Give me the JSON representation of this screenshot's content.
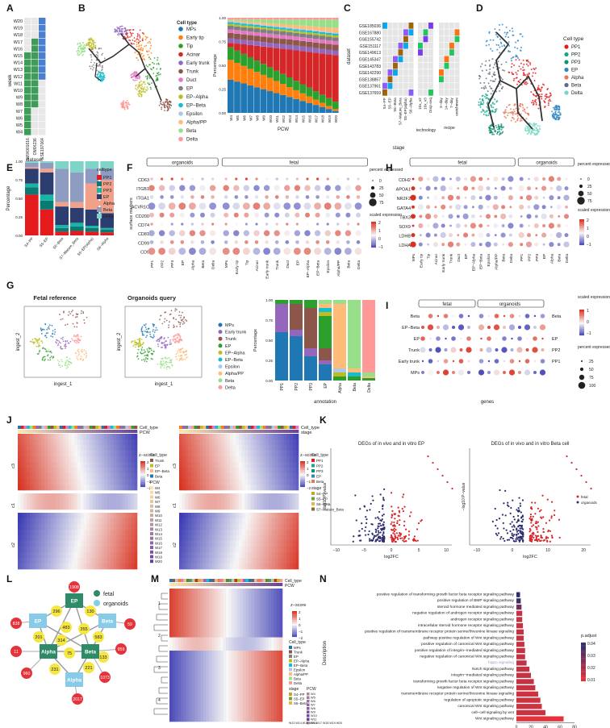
{
  "panels": {
    "a": "A",
    "b": "B",
    "c": "C",
    "d": "D",
    "e": "E",
    "f": "F",
    "g": "G",
    "h": "H",
    "i": "I",
    "j": "J",
    "k": "K",
    "l": "L",
    "m": "M",
    "n": "N"
  },
  "panel_a": {
    "ylabel": "week",
    "xlabel": "dataset",
    "weeks": [
      "W20",
      "W19",
      "W18",
      "W17",
      "W16",
      "W15",
      "W14",
      "W13",
      "W12",
      "W11",
      "W10",
      "W9",
      "W8",
      "W7",
      "W6",
      "W5",
      "W4"
    ],
    "datasets": [
      "OMIX001616",
      "OMIX236",
      "GSE197064"
    ]
  },
  "cell_types": {
    "legend_title": "Cell type",
    "items": [
      {
        "name": "MPs",
        "color": "#1f77b4"
      },
      {
        "name": "Early tip",
        "color": "#ff7f0e"
      },
      {
        "name": "Tip",
        "color": "#2ca02c"
      },
      {
        "name": "Acinar",
        "color": "#d62728"
      },
      {
        "name": "Early trunk",
        "color": "#9467bd"
      },
      {
        "name": "Trunk",
        "color": "#8c564b"
      },
      {
        "name": "Duct",
        "color": "#e377c2"
      },
      {
        "name": "EP",
        "color": "#7f7f7f"
      },
      {
        "name": "EP−Alpha",
        "color": "#bcbd22"
      },
      {
        "name": "EP−Beta",
        "color": "#17becf"
      },
      {
        "name": "Epsilon",
        "color": "#aec7e8"
      },
      {
        "name": "Alpha/PP",
        "color": "#ffbb78"
      },
      {
        "name": "Beta",
        "color": "#98df8a"
      },
      {
        "name": "Delta",
        "color": "#ff9896"
      }
    ]
  },
  "panel_b_bar": {
    "ylabel": "Percentage",
    "xlabel": "PCW",
    "yticks": [
      "0.00",
      "0.25",
      "0.50",
      "0.75",
      "1.00"
    ],
    "categories": [
      "W4",
      "W5",
      "W6",
      "W7",
      "W8",
      "W9",
      "W10",
      "W11",
      "W12",
      "W13",
      "W14",
      "W15",
      "W16",
      "W17",
      "W18",
      "W19",
      "W20"
    ]
  },
  "panel_c": {
    "ylabel": "dataset",
    "datasets": [
      "GSE185036",
      "GSE167880",
      "GSE155742",
      "GSE151117",
      "GSE149613",
      "GSE145347",
      "GSE143783",
      "GSE142290",
      "GSE138857",
      "GSE137961",
      "GSE137659"
    ],
    "stage_cols": [
      "S4−PP",
      "S5−EP",
      "S6−Beta",
      "S7−Mature_Beta",
      "S5−EP(alpha)",
      "S6−Alpha"
    ],
    "stage_label": "stage",
    "tech_cols": [
      "10x_v2",
      "10x_v3",
      "Drop-seq"
    ],
    "tech_label": "technology",
    "recipe_cols": [
      "6−day",
      "14−day",
      "7−day",
      "enrichment"
    ],
    "recipe_label": "recipe"
  },
  "panel_d": {
    "legend_title": "Cell type",
    "items": [
      {
        "name": "PP1",
        "color": "#e41a1c"
      },
      {
        "name": "PP2",
        "color": "#17a589"
      },
      {
        "name": "PP3",
        "color": "#148f77"
      },
      {
        "name": "EP",
        "color": "#2e86c1"
      },
      {
        "name": "Alpha",
        "color": "#e8775a"
      },
      {
        "name": "Beta",
        "color": "#5d6d7e"
      },
      {
        "name": "Delta",
        "color": "#76d7c4"
      }
    ]
  },
  "panel_e": {
    "ylabel": "Percentage",
    "legend_title": "celltype",
    "yticks": [
      "0.00",
      "0.25",
      "0.50",
      "0.75",
      "1.00"
    ],
    "categories": [
      "S4−PP",
      "S5−EP",
      "S6−Beta",
      "S7−Mature_Beta",
      "S5−EP(alpha)",
      "S6−Alpha"
    ],
    "legend": [
      {
        "name": "PP1",
        "color": "#e41a1c"
      },
      {
        "name": "PP2",
        "color": "#0b7a75"
      },
      {
        "name": "PP3",
        "color": "#17b5a6"
      },
      {
        "name": "EP",
        "color": "#2c3e70"
      },
      {
        "name": "Alpha",
        "color": "#f1a08a"
      },
      {
        "name": "Beta",
        "color": "#8e9cc2"
      },
      {
        "name": "Delta",
        "color": "#7fd4c8"
      }
    ],
    "stacks": [
      [
        0.55,
        0.1,
        0.05,
        0.2,
        0.02,
        0.06,
        0.02
      ],
      [
        0.35,
        0.12,
        0.08,
        0.3,
        0.05,
        0.08,
        0.02
      ],
      [
        0.05,
        0.05,
        0.04,
        0.25,
        0.06,
        0.45,
        0.1
      ],
      [
        0.06,
        0.06,
        0.05,
        0.2,
        0.08,
        0.4,
        0.15
      ],
      [
        0.05,
        0.05,
        0.03,
        0.22,
        0.35,
        0.2,
        0.1
      ],
      [
        0.04,
        0.04,
        0.02,
        0.2,
        0.45,
        0.15,
        0.1
      ]
    ]
  },
  "panel_f": {
    "ylabel": "surface markers",
    "group1": "organoids",
    "group2": "fetal",
    "genes": [
      "CD63",
      "ITGB1",
      "ITGA1",
      "ACVR1C",
      "CD200",
      "CD74",
      "CD81",
      "CD99",
      "CD9"
    ],
    "xcats": [
      "PP1",
      "PP2",
      "PP3",
      "EP",
      "Alpha",
      "Beta",
      "Delta",
      "MPs",
      "Early tip",
      "Tip",
      "Acinar",
      "Early trunk",
      "Trunk",
      "Duct",
      "EP",
      "EP−Alpha",
      "EP−Beta",
      "Epsilon",
      "Alpha/PP",
      "Beta",
      "Delta"
    ],
    "legend_pct_title": "percent expressed",
    "legend_pct": [
      "0",
      "25",
      "50",
      "75"
    ],
    "legend_expr_title": "scaled expression",
    "legend_expr": [
      "2",
      "1",
      "0",
      "−1"
    ]
  },
  "panel_h": {
    "group1": "fetal",
    "group2": "organoids",
    "genes": [
      "CDH2",
      "APOA1",
      "NR2F2",
      "GATA4",
      "TBX3",
      "SOX9",
      "LDHB",
      "LDHA"
    ],
    "xcats": [
      "MPs",
      "Early tip",
      "Tip",
      "Acinar",
      "Early trunk",
      "Trunk",
      "Duct",
      "EP",
      "EP−Alpha",
      "EP−Beta",
      "Epsilon",
      "Alpha/PP",
      "Beta",
      "Delta",
      "PP1",
      "PP2",
      "PP3",
      "EP",
      "Alpha",
      "Beta",
      "Delta"
    ],
    "legend_pct_title": "percent expressed",
    "legend_pct": [
      "0",
      "25",
      "50",
      "75"
    ],
    "legend_expr_title": "scaled expression",
    "legend_expr": [
      "2",
      "1",
      "0",
      "−1"
    ]
  },
  "panel_g": {
    "title1": "Fetal reference",
    "title2": "Organoids query",
    "xlabel": "ingest_1",
    "ylabel": "ingest_2",
    "legend": [
      "MPs",
      "Early trunk",
      "Trunk",
      "EP",
      "EP−Alpha",
      "EP−Beta",
      "Epsilon",
      "Alpha/PP",
      "Beta",
      "Delta"
    ],
    "bar_ylabel": "Percentage",
    "bar_xlabel": "annotation",
    "yticks": [
      "0.00",
      "0.25",
      "0.50",
      "0.75",
      "1.00"
    ],
    "bar_cats": [
      "PP1",
      "PP2",
      "PP3",
      "EP",
      "Alpha",
      "Beta",
      "Delta"
    ]
  },
  "panel_i": {
    "group1": "fetal",
    "group2": "organoids",
    "rows": [
      "Beta",
      "EP−Beta",
      "EP",
      "Trunk",
      "Early trunk",
      "MPs"
    ],
    "right_labels": [
      "Beta",
      "",
      "EP",
      "PP2",
      "PP1",
      ""
    ],
    "xlabel": "genes",
    "legend_expr_title": "scaled expression",
    "legend_expr": [
      "1",
      "0",
      "−1"
    ],
    "legend_pct_title": "percent expressed",
    "legend_pct": [
      "25",
      "50",
      "75",
      "100"
    ]
  },
  "panel_j": {
    "left_top1": "Cell_type",
    "left_top2": "PCW",
    "right_top1": "Cell_type",
    "right_top2": "stage",
    "clusters_left": [
      "c3",
      "c1",
      "c2"
    ],
    "clusters_right": [
      "c3",
      "c1",
      "c2"
    ],
    "zscore": "z−score",
    "zticks": [
      "2",
      "1",
      "0",
      "−1",
      "−2"
    ],
    "left_cell_legend": [
      "Trunk",
      "EP",
      "EP−Beta",
      "Beta"
    ],
    "pcw_legend": [
      "W4",
      "W5",
      "W6",
      "W7",
      "W8",
      "W9",
      "W10",
      "W11",
      "W12",
      "W13",
      "W14",
      "W15",
      "W16",
      "W17",
      "W18",
      "W19",
      "W20"
    ],
    "right_cell_legend": [
      "PP1",
      "PP2",
      "PP3",
      "EP",
      "Beta"
    ],
    "stage_legend": [
      "S4−PP",
      "S5−EP",
      "S6−Beta",
      "S7−Mature_Beta"
    ]
  },
  "panel_k": {
    "title1": "DEGs of in vivo and in vitro EP",
    "title2": "DEGs of in vivo and in vitro Beta cell",
    "xlabel": "log2FC",
    "ylabel": "−log10 P−value",
    "x1ticks": [
      "−10",
      "−5",
      "0",
      "5",
      "10"
    ],
    "x2ticks": [
      "−10",
      "0",
      "10",
      "20"
    ],
    "legend": [
      "fetal",
      "organoids"
    ]
  },
  "panel_l": {
    "legend": [
      "fetal",
      "organoids"
    ],
    "nodes": [
      "EP",
      "EP",
      "Beta",
      "Alpha",
      "Beta",
      "Alpha"
    ],
    "edge_labels": [
      "130",
      "296",
      "483",
      "355",
      "201",
      "314",
      "583",
      "75",
      "231",
      "221",
      "133"
    ],
    "red_labels": [
      "1908",
      "838",
      "59",
      "960",
      "1073",
      "959",
      "11",
      "2017"
    ]
  },
  "panel_m": {
    "top1": "Cell_type",
    "top2": "PCW",
    "zscore": "z−score",
    "zticks": [
      "2",
      "1",
      "0",
      "−1",
      "−2"
    ],
    "cell_legend_title": "Cell_type",
    "cell_legend": [
      "MPs",
      "Trunk",
      "EP",
      "EP−Alpha",
      "EP−Beta",
      "Epsilon",
      "Alpha/PP",
      "Beta",
      "Delta"
    ],
    "stage_title": "stage",
    "stage_legend": [
      "S4−PP",
      "S5−EP",
      "S6−Beta"
    ],
    "pcw_title": "PCW",
    "pcw_legend": [
      "W4",
      "W5",
      "W6",
      "W7",
      "W8",
      "W9",
      "W10",
      "W11",
      "W12",
      "W13",
      "W14",
      "W15",
      "W16",
      "W17",
      "W18",
      "W19",
      "W20"
    ],
    "row_labels": [
      "1",
      "2",
      "3",
      "4"
    ]
  },
  "panel_n": {
    "ylabel": "Description",
    "xlabel": "Count",
    "legend_title": "p.adjust",
    "legend_ticks": [
      "0.04",
      "0.03",
      "0.02",
      "0.01"
    ],
    "xticks": [
      "0",
      "20",
      "40",
      "60",
      "80"
    ],
    "terms": [
      "positive regulation of transforming growth factor beta receptor signaling pathway",
      "positive regulation of BMP signaling pathway",
      "steroid hormone mediated signaling pathway",
      "negative regulation of androgen receptor signaling pathway",
      "androgen receptor signaling pathway",
      "intracellular steroid hormone receptor signaling pathway",
      "positive regulation of transmembrane receptor protein serine/threonine kinase signaling",
      "pathway positive regulation of Wnt signaling pathway",
      "positive regulation of canonical Wnt signaling pathway",
      "positive regulation of integrin−mediated signaling pathway",
      "negative regulation of canonical Wnt signaling pathway",
      "hippo signaling",
      "Notch signaling pathway",
      "integrin−mediated signaling pathway",
      "transforming growth factor beta receptor signaling pathway",
      "negative regulation of Wnt signaling pathway",
      "transmembrane receptor protein serine/threonine kinase signaling",
      "regulation of apoptotic signaling pathway",
      "canonical Wnt signaling pathway",
      "cell−cell signaling by wnt",
      "Wnt signaling pathway"
    ],
    "counts": [
      5,
      6,
      7,
      8,
      8,
      9,
      10,
      10,
      11,
      12,
      12,
      14,
      18,
      20,
      24,
      26,
      30,
      33,
      35,
      40,
      65
    ],
    "padj": [
      0.045,
      0.04,
      0.03,
      0.012,
      0.012,
      0.012,
      0.012,
      0.012,
      0.012,
      0.012,
      0.012,
      0.013,
      0.012,
      0.012,
      0.012,
      0.012,
      0.01,
      0.01,
      0.01,
      0.01,
      0.005
    ]
  }
}
